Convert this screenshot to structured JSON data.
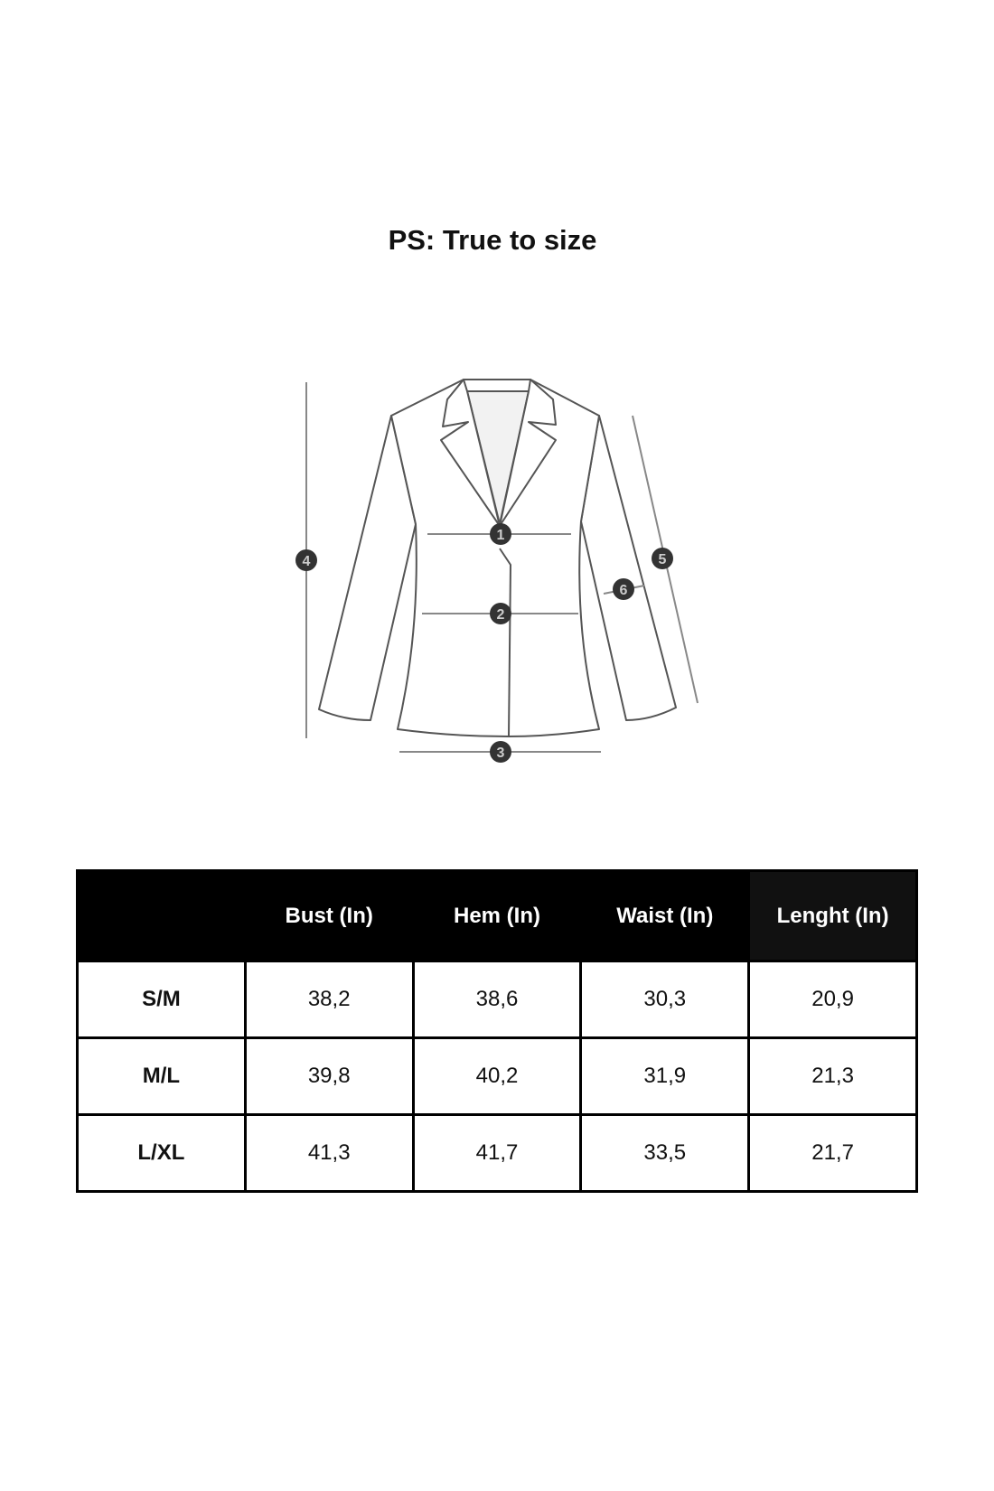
{
  "title": "PS: True to size",
  "diagram": {
    "markers": [
      "1",
      "2",
      "3",
      "4",
      "5",
      "6"
    ],
    "line_color": "#888888",
    "marker_color": "#333333"
  },
  "table": {
    "corner": "",
    "headers": [
      "Bust (In)",
      "Hem (In)",
      "Waist (In)",
      "Lenght (In)"
    ],
    "rows": [
      {
        "size": "S/M",
        "values": [
          "38,2",
          "38,6",
          "30,3",
          "20,9"
        ]
      },
      {
        "size": "M/L",
        "values": [
          "39,8",
          "40,2",
          "31,9",
          "21,3"
        ]
      },
      {
        "size": "L/XL",
        "values": [
          "41,3",
          "41,7",
          "33,5",
          "21,7"
        ]
      }
    ]
  }
}
